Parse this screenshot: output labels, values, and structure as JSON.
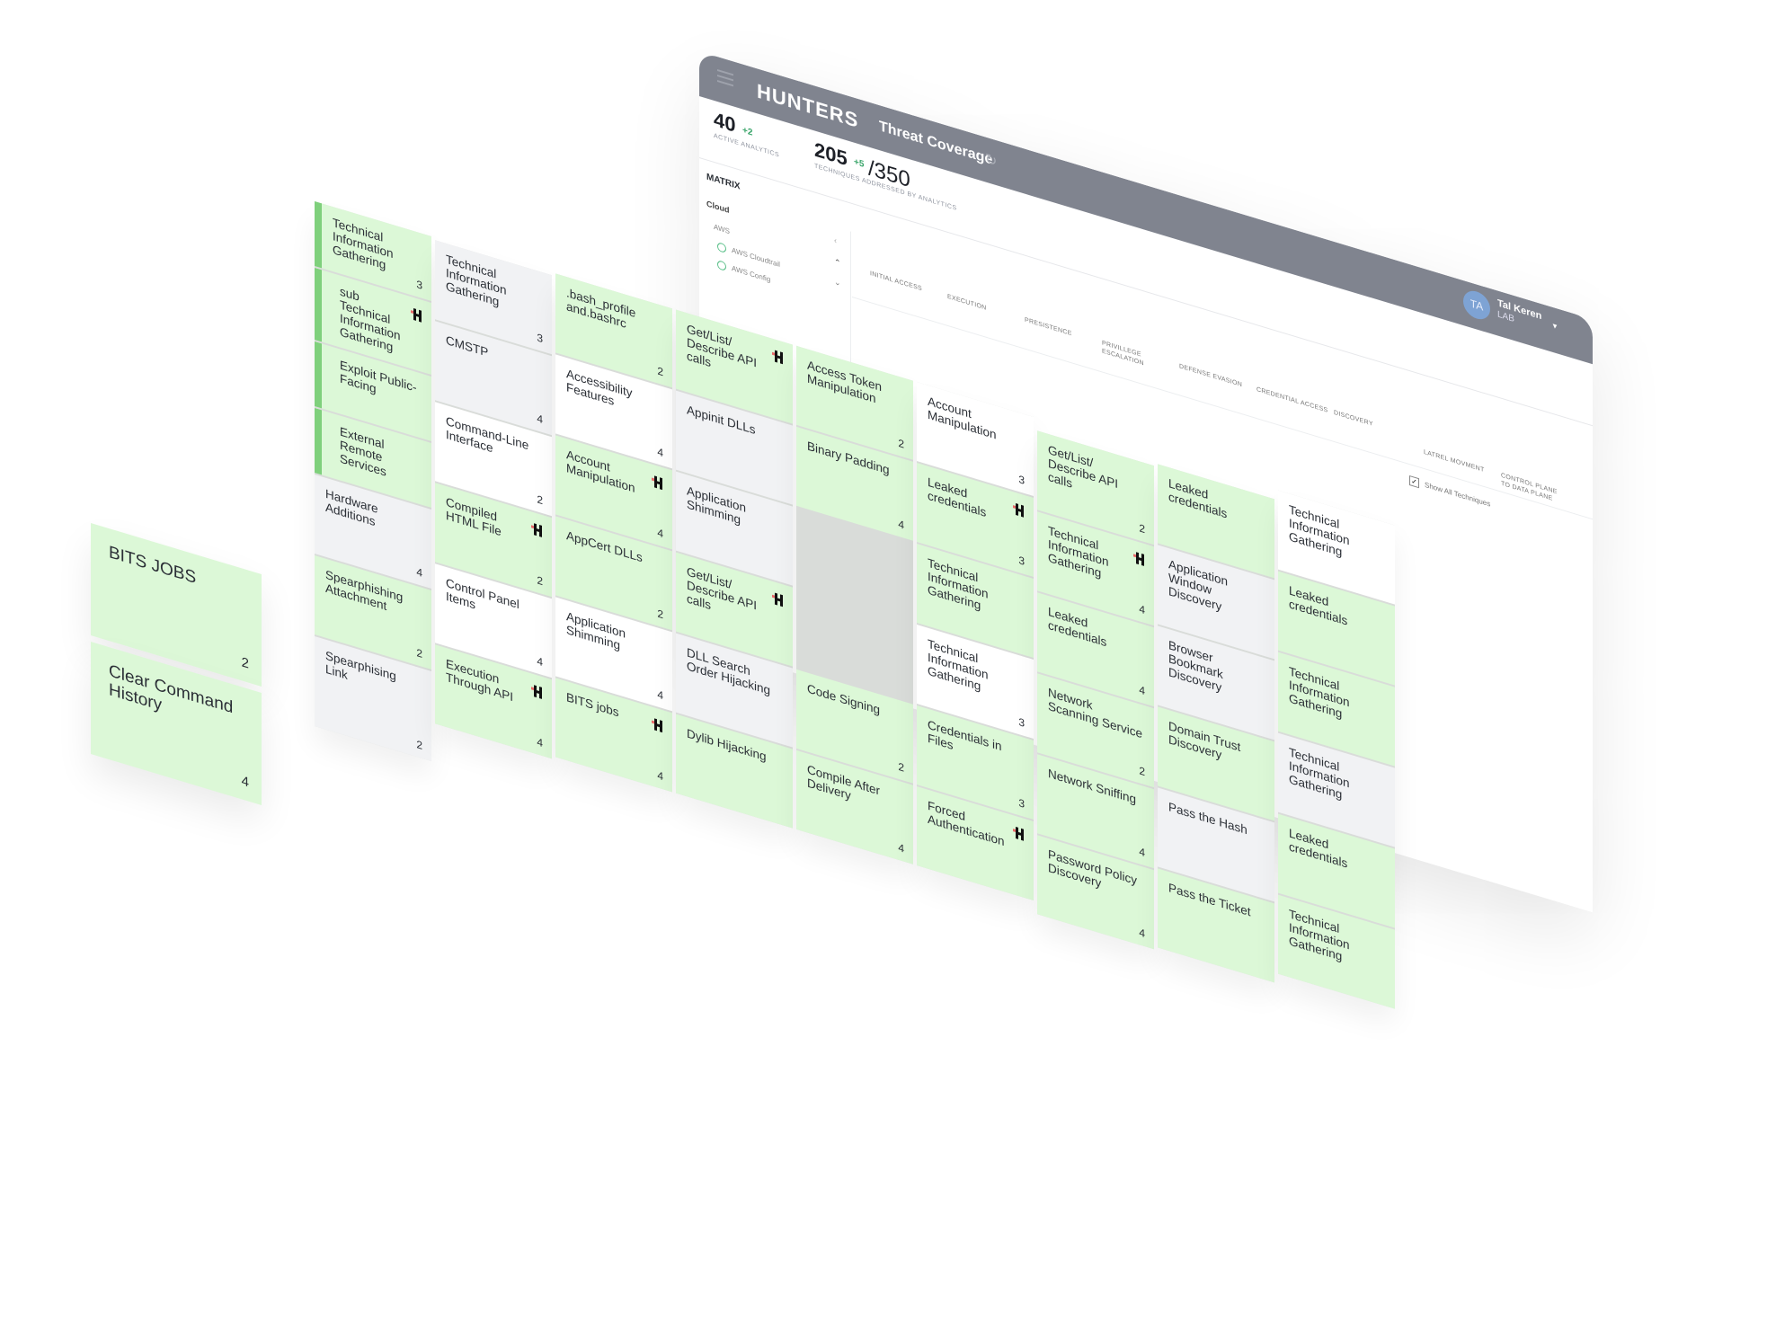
{
  "colors": {
    "header": "#80848f",
    "card_green": "#dcf8d7",
    "card_white": "#ffffff",
    "card_gray": "#f1f2f4",
    "accent_green": "#7fd07c",
    "delta_green": "#3aa56a",
    "avatar": "#7ea3d4"
  },
  "header": {
    "logo": "HUNTERS",
    "title": "Threat Coverage",
    "menu_icon": "hamburger-icon",
    "refresh_icon": "refresh-icon",
    "user": {
      "initials": "TA",
      "name": "Tal Keren",
      "org": "LAB"
    }
  },
  "stats": {
    "active": {
      "value": "40",
      "delta": "+2",
      "label": "ACTIVE ANALYTICS"
    },
    "techniques": {
      "value": "205",
      "delta": "+5",
      "total": "/350",
      "label": "TECHNIQUES ADDRESSED BY ANALYTICS"
    }
  },
  "sidebar": {
    "heading": "MATRIX",
    "section": "Cloud",
    "group": "AWS",
    "items": [
      "AWS Cloudtrail",
      "AWS Config"
    ]
  },
  "columns": [
    "INITIAL ACCESS",
    "EXECUTION",
    "PRESISTENCE",
    "PRIVILLEGE ESCALATION",
    "DEFENSE EVASION",
    "CREDENTIAL ACCESS",
    "DISCOVERY",
    "LATREL MOVMENT",
    "CONTROL PLANE TO DATA PLANE"
  ],
  "show_all": {
    "label": "Show All Techniques",
    "checked": true
  },
  "matrix": [
    [
      {
        "t": "Technical Information Gathering",
        "c": "3",
        "k": "g",
        "lead": true
      },
      {
        "t": "sub Technical Information Gathering",
        "k": "g",
        "sub": true,
        "icon": true
      },
      {
        "t": "Exploit Public-Facing",
        "k": "g",
        "sub": true
      },
      {
        "t": "External Remote Services",
        "k": "g",
        "sub": true
      },
      {
        "t": "Hardware Additions",
        "c": "4",
        "k": "l"
      },
      {
        "t": "Spearphishing Attachment",
        "c": "2",
        "k": "g"
      },
      {
        "t": "Spearphising Link",
        "c": "2",
        "k": "l"
      }
    ],
    [
      {
        "t": "Technical Information Gathering",
        "c": "3",
        "k": "l"
      },
      {
        "t": "CMSTP",
        "c": "4",
        "k": "l"
      },
      {
        "t": "Command-Line Interface",
        "c": "2",
        "k": "w"
      },
      {
        "t": "Compiled HTML File",
        "c": "2",
        "k": "g",
        "icon": true
      },
      {
        "t": "Control Panel Items",
        "c": "4",
        "k": "w"
      },
      {
        "t": "Execution Through API",
        "c": "4",
        "k": "g",
        "icon": true
      }
    ],
    [
      {
        "t": ".bash_profile and.bashrc",
        "c": "2",
        "k": "g"
      },
      {
        "t": "Accessibility Features",
        "c": "4",
        "k": "w"
      },
      {
        "t": "Account Manipulation",
        "c": "4",
        "k": "g",
        "icon": true
      },
      {
        "t": "AppCert DLLs",
        "c": "2",
        "k": "g"
      },
      {
        "t": "Application Shimming",
        "c": "4",
        "k": "w"
      },
      {
        "t": "BITS jobs",
        "c": "4",
        "k": "g",
        "icon": true
      }
    ],
    [
      {
        "t": "Get/List/ Describe API calls",
        "k": "g",
        "icon": true
      },
      {
        "t": "Appinit DLLs",
        "k": "l"
      },
      {
        "t": "Application Shimming",
        "k": "l"
      },
      {
        "t": "Get/List/ Describe API calls",
        "k": "g",
        "icon": true
      },
      {
        "t": "DLL Search Order Hijacking",
        "k": "l"
      },
      {
        "t": "Dylib Hijacking",
        "k": "g"
      }
    ],
    [
      {
        "t": "Access Token Manipulation",
        "c": "2",
        "k": "g"
      },
      {
        "t": "Binary Padding",
        "c": "4",
        "k": "g"
      },
      null,
      null,
      {
        "t": "Code Signing",
        "c": "2",
        "k": "g"
      },
      {
        "t": "Compile After Delivery",
        "c": "4",
        "k": "g"
      }
    ],
    [
      {
        "t": "Account Manipulation",
        "c": "3",
        "k": "w"
      },
      {
        "t": "Leaked credentials",
        "c": "3",
        "k": "g",
        "icon": true
      },
      {
        "t": "Technical Information Gathering",
        "k": "g"
      },
      {
        "t": "Technical Information Gathering",
        "c": "3",
        "k": "w"
      },
      {
        "t": "Credentials in Files",
        "c": "3",
        "k": "g"
      },
      {
        "t": "Forced Authentication",
        "k": "g",
        "icon": true
      }
    ],
    [
      {
        "t": "Get/List/ Describe API calls",
        "c": "2",
        "k": "g"
      },
      {
        "t": "Technical Information Gathering",
        "c": "4",
        "k": "g",
        "icon": true
      },
      {
        "t": "Leaked credentials",
        "c": "4",
        "k": "g"
      },
      {
        "t": "Network Scanning Service",
        "c": "2",
        "k": "g"
      },
      {
        "t": "Network Sniffing",
        "c": "4",
        "k": "g"
      },
      {
        "t": "Password Policy Discovery",
        "c": "4",
        "k": "g"
      }
    ],
    [
      {
        "t": "Leaked credentials",
        "k": "g"
      },
      {
        "t": "Application Window Discovery",
        "k": "l"
      },
      {
        "t": "Browser Bookmark Discovery",
        "k": "l"
      },
      {
        "t": "Domain Trust Discovery",
        "k": "g"
      },
      {
        "t": "Pass the Hash",
        "k": "l"
      },
      {
        "t": "Pass the Ticket",
        "k": "g"
      }
    ],
    [
      {
        "t": "Technical Information Gathering",
        "k": "w"
      },
      {
        "t": "Leaked credentials",
        "k": "g"
      },
      {
        "t": "Technical Information Gathering",
        "k": "g"
      },
      {
        "t": "Technical Information Gathering",
        "k": "l"
      },
      {
        "t": "Leaked credentials",
        "k": "g"
      },
      {
        "t": "Technical Information Gathering",
        "k": "g"
      }
    ]
  ],
  "floating": [
    {
      "t": "BITS JOBS",
      "c": "2"
    },
    {
      "t": "Clear Command History",
      "c": "4"
    }
  ]
}
